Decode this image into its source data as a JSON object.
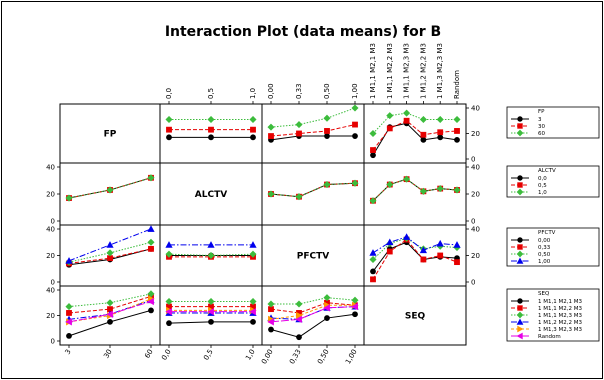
{
  "chart_data": {
    "type": "line",
    "title": "Interaction Plot (data means) for B",
    "factors": [
      {
        "name": "FP",
        "levels": [
          "3",
          "30",
          "60"
        ],
        "ylim": [
          0,
          40
        ],
        "yticks": [
          "0",
          "20",
          "40"
        ]
      },
      {
        "name": "ALCTV",
        "levels": [
          "0,0",
          "0,5",
          "1,0"
        ],
        "ylim": [
          0,
          40
        ],
        "yticks": [
          "0",
          "20",
          "40"
        ]
      },
      {
        "name": "PFCTV",
        "levels": [
          "0,00",
          "0,33",
          "0,50",
          "1,00"
        ],
        "ylim": [
          0,
          40
        ],
        "yticks": [
          "0",
          "20",
          "40"
        ]
      },
      {
        "name": "SEQ",
        "levels": [
          "1 M1,1 M2,1 M3",
          "1 M1,1 M2,2 M3",
          "1 M1,1 M2,3 M3",
          "1 M1,2 M2,2 M3",
          "1 M1,3 M2,3 M3",
          "Random"
        ],
        "ylim": [
          0,
          40
        ],
        "yticks": [
          "0",
          "20",
          "40"
        ]
      }
    ],
    "bottom_tick_labels": [
      [
        "3",
        "30",
        "60"
      ],
      [
        "0,0",
        "0,5",
        "1,0"
      ],
      [
        "0,00",
        "0,33",
        "0,50",
        "1,00"
      ],
      []
    ],
    "top_tick_labels": [
      [],
      [
        "0,0",
        "0,5",
        "1,0"
      ],
      [
        "0,00",
        "0,33",
        "0,50",
        "1,00"
      ],
      [
        "1 M1,1 M2,1 M3",
        "1 M1,1 M2,2 M3",
        "1 M1,1 M2,3 M3",
        "1 M1,2 M2,2 M3",
        "1 M1,3 M2,3 M3",
        "Random"
      ]
    ],
    "left_axis_ticks": [
      "0",
      "20",
      "40"
    ],
    "right_axis_ticks": [
      "0",
      "20",
      "40"
    ],
    "styles": [
      {
        "color": "#000000",
        "marker": "circle",
        "dash": ""
      },
      {
        "color": "#e60000",
        "marker": "square",
        "dash": "4,2"
      },
      {
        "color": "#3cbc3c",
        "marker": "diamond",
        "dash": "1.5,1.5"
      },
      {
        "color": "#0000ee",
        "marker": "triangle",
        "dash": "6,2,1.5,2"
      },
      {
        "color": "#ff9900",
        "marker": "triangle-right",
        "dash": "3,2"
      },
      {
        "color": "#e600e6",
        "marker": "triangle-left",
        "dash": "8,2"
      }
    ],
    "panels": [
      {
        "row": 0,
        "col": 1,
        "series": [
          [
            17,
            17,
            17
          ],
          [
            23,
            23,
            23
          ],
          [
            31,
            31,
            31
          ]
        ]
      },
      {
        "row": 0,
        "col": 2,
        "series": [
          [
            15,
            18,
            18,
            18
          ],
          [
            18,
            20,
            22,
            27
          ],
          [
            25,
            27,
            32,
            40
          ]
        ]
      },
      {
        "row": 0,
        "col": 3,
        "series": [
          [
            3,
            25,
            28,
            15,
            17,
            15
          ],
          [
            7,
            24,
            30,
            19,
            21,
            22
          ],
          [
            20,
            34,
            36,
            31,
            31,
            31
          ]
        ]
      },
      {
        "row": 1,
        "col": 0,
        "series": [
          [
            17,
            23,
            32
          ],
          [
            17,
            23,
            32
          ],
          [
            17,
            23,
            32
          ]
        ]
      },
      {
        "row": 1,
        "col": 2,
        "series": [
          [
            20,
            18,
            27,
            28
          ],
          [
            20,
            18,
            27,
            28
          ],
          [
            20,
            18,
            27,
            28
          ]
        ]
      },
      {
        "row": 1,
        "col": 3,
        "series": [
          [
            15,
            27,
            31,
            22,
            24,
            23
          ],
          [
            15,
            27,
            31,
            22,
            24,
            23
          ],
          [
            15,
            27,
            31,
            22,
            24,
            23
          ]
        ]
      },
      {
        "row": 2,
        "col": 0,
        "series": [
          [
            13,
            17,
            25
          ],
          [
            14,
            18,
            25
          ],
          [
            15,
            22,
            30
          ],
          [
            16,
            28,
            40
          ]
        ]
      },
      {
        "row": 2,
        "col": 1,
        "series": [
          [
            20,
            20,
            20
          ],
          [
            19,
            19,
            19
          ],
          [
            21,
            20,
            21
          ],
          [
            28,
            28,
            28
          ]
        ]
      },
      {
        "row": 2,
        "col": 3,
        "series": [
          [
            8,
            25,
            30,
            17,
            19,
            18
          ],
          [
            2,
            23,
            32,
            17,
            20,
            15
          ],
          [
            17,
            29,
            33,
            25,
            27,
            26
          ],
          [
            22,
            30,
            34,
            24,
            29,
            28
          ]
        ]
      },
      {
        "row": 3,
        "col": 0,
        "series": [
          [
            4,
            15,
            24
          ],
          [
            22,
            25,
            35
          ],
          [
            27,
            30,
            37
          ],
          [
            17,
            21,
            32
          ],
          [
            15,
            20,
            33
          ],
          [
            15,
            21,
            31
          ]
        ]
      },
      {
        "row": 3,
        "col": 1,
        "series": [
          [
            14,
            15,
            15
          ],
          [
            27,
            27,
            27
          ],
          [
            31,
            31,
            31
          ],
          [
            22,
            22,
            22
          ],
          [
            24,
            24,
            24
          ],
          [
            23,
            23,
            23
          ]
        ]
      },
      {
        "row": 3,
        "col": 2,
        "series": [
          [
            9,
            3,
            18,
            21
          ],
          [
            25,
            22,
            30,
            28
          ],
          [
            29,
            29,
            34,
            32
          ],
          [
            18,
            17,
            26,
            27
          ],
          [
            17,
            20,
            28,
            28
          ],
          [
            15,
            17,
            26,
            27
          ]
        ]
      }
    ],
    "legends": [
      {
        "title": "FP",
        "entries": [
          "3",
          "30",
          "60"
        ]
      },
      {
        "title": "ALCTV",
        "entries": [
          "0,0",
          "0,5",
          "1,0"
        ]
      },
      {
        "title": "PFCTV",
        "entries": [
          "0,00",
          "0,33",
          "0,50",
          "1,00"
        ]
      },
      {
        "title": "SEQ",
        "entries": [
          "1 M1,1 M2,1 M3",
          "1 M1,1 M2,2 M3",
          "1 M1,1 M2,3 M3",
          "1 M1,2 M2,2 M3",
          "1 M1,3 M2,3 M3",
          "Random"
        ]
      }
    ]
  }
}
